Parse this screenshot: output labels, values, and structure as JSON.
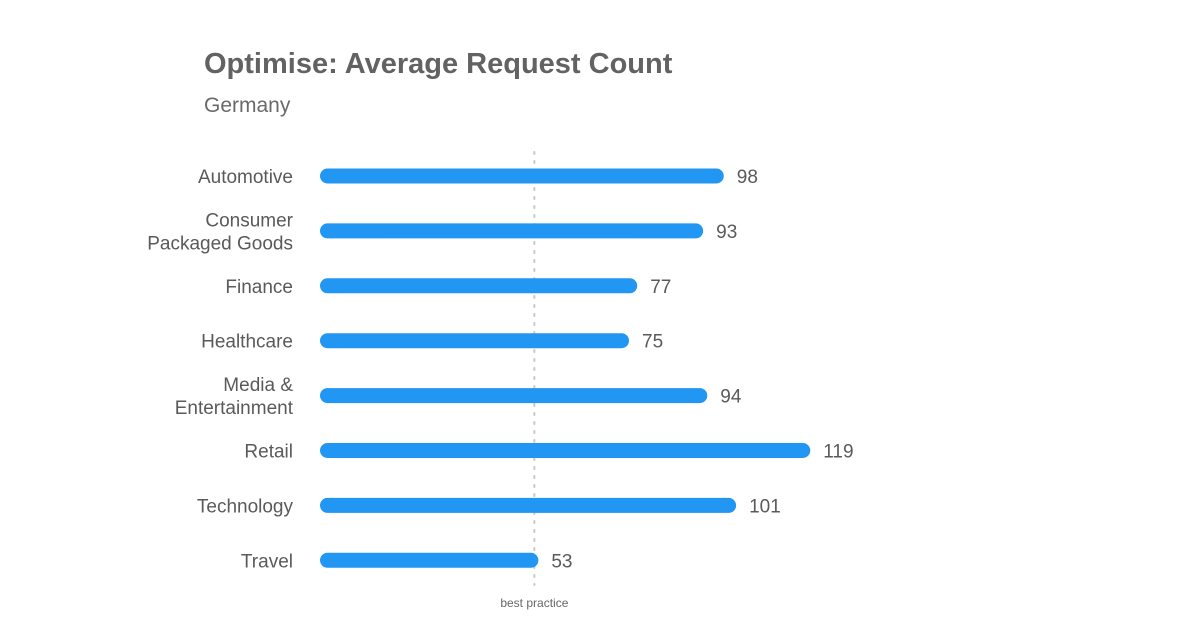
{
  "header": {
    "title": "Optimise: Average Request Count",
    "subtitle": "Germany"
  },
  "chart_data": {
    "type": "bar",
    "orientation": "horizontal",
    "title": "Optimise: Average Request Count",
    "subtitle": "Germany",
    "categories": [
      [
        "Automotive"
      ],
      [
        "Consumer",
        "Packaged Goods"
      ],
      [
        "Finance"
      ],
      [
        "Healthcare"
      ],
      [
        "Media &",
        "Entertainment"
      ],
      [
        "Retail"
      ],
      [
        "Technology"
      ],
      [
        "Travel"
      ]
    ],
    "values": [
      98,
      93,
      77,
      75,
      94,
      119,
      101,
      53
    ],
    "reference_line": {
      "label": "best practice",
      "value": 53,
      "style": "dotted"
    },
    "xlim": [
      0,
      120
    ],
    "grid": false,
    "legend": "none",
    "colors": {
      "bar": "#2196f3",
      "reference": "#c8c8c8",
      "text": "#5a5a5a"
    }
  }
}
